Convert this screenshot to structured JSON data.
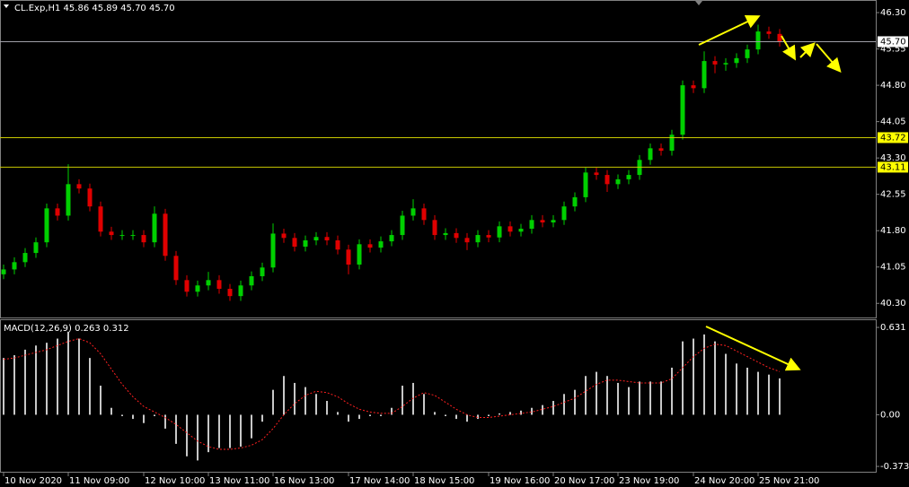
{
  "chart_data": [
    {
      "type": "candlestick",
      "title": "CL.Exp,H1  45.86 45.89 45.70 45.70",
      "categories": [
        "10 Nov 2020",
        null,
        null,
        null,
        null,
        null,
        "11 Nov 09:00",
        null,
        null,
        null,
        null,
        null,
        null,
        "12 Nov 10:00",
        null,
        null,
        null,
        null,
        null,
        "13 Nov 11:00",
        null,
        null,
        null,
        null,
        null,
        "16 Nov 13:00",
        null,
        null,
        null,
        null,
        null,
        null,
        "17 Nov 14:00",
        null,
        null,
        null,
        null,
        null,
        "18 Nov 15:00",
        null,
        null,
        null,
        null,
        null,
        null,
        "19 Nov 16:00",
        null,
        null,
        null,
        null,
        null,
        "20 Nov 17:00",
        null,
        null,
        null,
        null,
        null,
        "23 Nov 19:00",
        null,
        null,
        null,
        null,
        null,
        null,
        "24 Nov 20:00",
        null,
        null,
        null,
        null,
        null,
        "25 Nov 21:00",
        null,
        null
      ],
      "open": [
        40.9,
        41.0,
        41.15,
        41.34,
        41.56,
        42.26,
        42.11,
        42.76,
        42.67,
        42.3,
        41.78,
        41.71,
        41.71,
        41.71,
        41.56,
        42.15,
        41.28,
        40.78,
        40.54,
        40.67,
        40.78,
        40.6,
        40.45,
        40.67,
        40.86,
        41.04,
        41.74,
        41.65,
        41.47,
        41.6,
        41.67,
        41.6,
        41.41,
        41.1,
        41.52,
        41.45,
        41.58,
        41.71,
        42.11,
        42.26,
        42.02,
        41.71,
        41.75,
        41.65,
        41.56,
        41.71,
        41.66,
        41.89,
        41.78,
        41.84,
        42.02,
        41.97,
        42.02,
        42.3,
        42.49,
        43.0,
        42.95,
        42.76,
        42.86,
        42.95,
        43.26,
        43.5,
        43.45,
        43.78,
        44.8,
        44.74,
        45.3,
        45.23,
        45.26,
        45.36,
        45.54,
        45.91,
        45.86
      ],
      "high": [
        41.1,
        41.25,
        41.44,
        41.66,
        42.36,
        42.36,
        43.17,
        42.86,
        42.77,
        42.4,
        41.88,
        41.81,
        41.81,
        41.81,
        42.3,
        42.25,
        41.38,
        40.88,
        40.77,
        40.95,
        40.88,
        40.7,
        40.77,
        40.96,
        41.14,
        41.95,
        41.84,
        41.75,
        41.7,
        41.77,
        41.77,
        41.7,
        41.51,
        41.62,
        41.62,
        41.68,
        41.81,
        42.21,
        42.45,
        42.36,
        42.12,
        41.85,
        41.85,
        41.75,
        41.81,
        41.81,
        41.99,
        41.99,
        41.94,
        42.12,
        42.12,
        42.12,
        42.4,
        42.59,
        43.1,
        43.1,
        43.05,
        42.96,
        43.05,
        43.36,
        43.6,
        43.6,
        43.88,
        44.9,
        44.9,
        45.5,
        45.4,
        45.36,
        45.46,
        45.64,
        46.05,
        46.01,
        45.96
      ],
      "low": [
        40.8,
        40.9,
        41.05,
        41.24,
        41.46,
        42.01,
        42.01,
        42.57,
        42.2,
        41.68,
        41.61,
        41.61,
        41.61,
        41.46,
        41.46,
        41.18,
        40.68,
        40.44,
        40.44,
        40.57,
        40.5,
        40.35,
        40.35,
        40.57,
        40.76,
        40.94,
        41.55,
        41.37,
        41.37,
        41.5,
        41.5,
        41.31,
        40.9,
        41.0,
        41.35,
        41.35,
        41.48,
        41.61,
        42.01,
        41.92,
        41.61,
        41.61,
        41.55,
        41.4,
        41.46,
        41.56,
        41.56,
        41.68,
        41.68,
        41.74,
        41.87,
        41.87,
        41.92,
        42.2,
        42.39,
        42.85,
        42.6,
        42.66,
        42.76,
        42.85,
        43.16,
        43.35,
        43.35,
        43.68,
        44.64,
        44.64,
        45.05,
        45.1,
        45.16,
        45.26,
        45.44,
        45.76,
        45.6
      ],
      "close": [
        41.0,
        41.15,
        41.34,
        41.56,
        42.26,
        42.11,
        42.76,
        42.67,
        42.3,
        41.78,
        41.71,
        41.71,
        41.71,
        41.56,
        42.15,
        41.28,
        40.78,
        40.54,
        40.67,
        40.78,
        40.6,
        40.45,
        40.67,
        40.86,
        41.04,
        41.74,
        41.65,
        41.47,
        41.6,
        41.67,
        41.6,
        41.41,
        41.1,
        41.52,
        41.45,
        41.58,
        41.71,
        42.11,
        42.26,
        42.02,
        41.71,
        41.75,
        41.65,
        41.56,
        41.71,
        41.66,
        41.89,
        41.78,
        41.84,
        42.02,
        41.97,
        42.02,
        42.3,
        42.49,
        43.0,
        42.95,
        42.76,
        42.86,
        42.95,
        43.26,
        43.5,
        43.45,
        43.78,
        44.8,
        44.74,
        45.3,
        45.23,
        45.26,
        45.36,
        45.54,
        45.91,
        45.86,
        45.7
      ],
      "up_color": "#00d000",
      "down_color": "#e00000",
      "ylim": [
        39.99,
        46.56
      ],
      "yticks": [
        {
          "value": 46.3,
          "label": "46.30"
        },
        45.55,
        {
          "value": 44.8,
          "label": "44.80"
        },
        44.05,
        {
          "value": 43.3,
          "label": "43.30"
        },
        42.55,
        {
          "value": 41.8,
          "label": "41.80"
        },
        41.05,
        {
          "value": 40.3,
          "label": "40.30"
        }
      ],
      "levels": [
        {
          "value": 45.7,
          "label": "45.70",
          "color": "#a0a0a8",
          "box": "#ffffff"
        },
        {
          "value": 43.72,
          "color": "#c8c800",
          "box": "#ffff00"
        },
        {
          "value": 43.11,
          "color": "#c8c800",
          "box": "#ffff00"
        }
      ]
    },
    {
      "type": "macd",
      "title": "MACD(12,26,9) 0.263 0.312",
      "values": [
        0.41,
        0.43,
        0.47,
        0.5,
        0.52,
        0.55,
        0.6,
        0.55,
        0.41,
        0.21,
        0.05,
        -0.01,
        -0.03,
        -0.06,
        -0.01,
        -0.1,
        -0.21,
        -0.3,
        -0.33,
        -0.27,
        -0.24,
        -0.24,
        -0.23,
        -0.17,
        -0.05,
        0.18,
        0.28,
        0.23,
        0.2,
        0.15,
        0.1,
        0.02,
        -0.05,
        -0.03,
        -0.01,
        -0.01,
        0.05,
        0.21,
        0.23,
        0.15,
        0.02,
        -0.01,
        -0.03,
        -0.05,
        -0.03,
        -0.01,
        0.01,
        0.02,
        0.03,
        0.05,
        0.07,
        0.1,
        0.15,
        0.18,
        0.28,
        0.31,
        0.28,
        0.23,
        0.2,
        0.24,
        0.24,
        0.24,
        0.34,
        0.53,
        0.55,
        0.58,
        0.53,
        0.44,
        0.37,
        0.34,
        0.31,
        0.29,
        0.263
      ],
      "color": "#c8c8c8",
      "signal": [
        0.4,
        0.41,
        0.43,
        0.45,
        0.47,
        0.5,
        0.53,
        0.55,
        0.52,
        0.44,
        0.33,
        0.22,
        0.13,
        0.06,
        0.02,
        -0.02,
        -0.07,
        -0.13,
        -0.19,
        -0.23,
        -0.25,
        -0.25,
        -0.24,
        -0.22,
        -0.18,
        -0.1,
        0.0,
        0.08,
        0.14,
        0.17,
        0.16,
        0.13,
        0.08,
        0.04,
        0.02,
        0.01,
        0.01,
        0.06,
        0.12,
        0.16,
        0.14,
        0.09,
        0.04,
        0.0,
        -0.02,
        -0.02,
        -0.01,
        0.0,
        0.01,
        0.02,
        0.04,
        0.06,
        0.09,
        0.12,
        0.17,
        0.22,
        0.25,
        0.25,
        0.24,
        0.23,
        0.23,
        0.23,
        0.26,
        0.34,
        0.42,
        0.48,
        0.51,
        0.5,
        0.46,
        0.42,
        0.38,
        0.34,
        0.312
      ],
      "signal_color": "#ff2020",
      "ylim": [
        -0.418,
        0.683
      ],
      "yticks": [
        0.631,
        {
          "value": 0,
          "label": "0.00"
        },
        -0.373
      ]
    }
  ]
}
